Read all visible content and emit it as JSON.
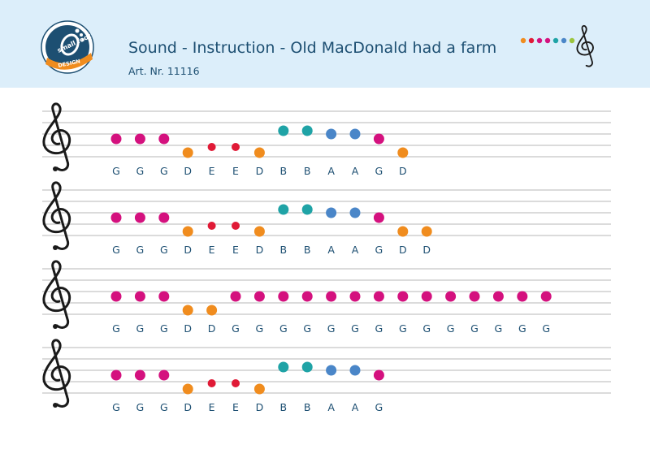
{
  "header": {
    "title": "Sound - Instruction - Old MacDonald had a farm",
    "art_nr": "Art. Nr. 11116",
    "logo": {
      "text_top": "small foot",
      "text_bottom": "DESIGN"
    }
  },
  "colors": {
    "G": "#d4117e",
    "D": "#f08c1e",
    "E": "#e01a36",
    "B": "#1fa3a6",
    "A": "#4a86c8",
    "label": "#1d4f72",
    "header_bg": "#dceefa",
    "staff_line": "#b7b7b7"
  },
  "decoration": {
    "dot_colors": [
      "#f08c1e",
      "#e01a36",
      "#d4117e",
      "#d4117e",
      "#1fa3a6",
      "#4a86c8",
      "#9bc53d"
    ],
    "icon": "treble-clef-icon"
  },
  "staves": [
    {
      "notes": [
        "G",
        "G",
        "G",
        "D",
        "E",
        "E",
        "D",
        "B",
        "B",
        "A",
        "A",
        "G",
        "D"
      ]
    },
    {
      "notes": [
        "G",
        "G",
        "G",
        "D",
        "E",
        "E",
        "D",
        "B",
        "B",
        "A",
        "A",
        "G",
        "D",
        "D"
      ]
    },
    {
      "notes": [
        "G",
        "G",
        "G",
        "D",
        "D",
        "G",
        "G",
        "G",
        "G",
        "G",
        "G",
        "G",
        "G",
        "G",
        "G",
        "G",
        "G",
        "G",
        "G"
      ]
    },
    {
      "notes": [
        "G",
        "G",
        "G",
        "D",
        "E",
        "E",
        "D",
        "B",
        "B",
        "A",
        "A",
        "G"
      ]
    }
  ]
}
